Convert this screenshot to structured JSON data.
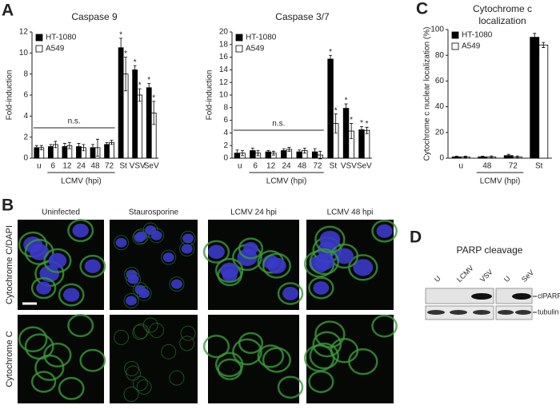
{
  "panel_labels": [
    "A",
    "B",
    "C",
    "D"
  ],
  "chart_data": [
    {
      "type": "bar",
      "title": "Caspase 9",
      "y_label": "Fold-induction",
      "categories": [
        "u",
        "6",
        "12",
        "24",
        "48",
        "72",
        "St",
        "VSV",
        "SeV"
      ],
      "x_group_label": "LCMV (hpi)",
      "annotation": "n.s.",
      "series": [
        {
          "name": "HT-1080",
          "color": "#000000",
          "values": [
            1.0,
            1.1,
            1.1,
            1.1,
            1.0,
            1.3,
            10.5,
            8.4,
            6.7
          ],
          "errors": [
            0.2,
            0.2,
            0.3,
            0.3,
            0.3,
            0.2,
            0.9,
            0.4,
            0.4
          ],
          "value_labels": [
            null,
            null,
            null,
            null,
            null,
            null,
            "*",
            "*",
            "*"
          ]
        },
        {
          "name": "A549",
          "color": "#ffffff",
          "values": [
            1.0,
            1.3,
            1.2,
            1.0,
            1.0,
            1.5,
            8.0,
            6.0,
            4.3
          ],
          "errors": [
            0.2,
            0.3,
            0.3,
            0.3,
            0.8,
            0.2,
            1.6,
            0.6,
            1.1
          ],
          "value_labels": [
            null,
            null,
            null,
            null,
            null,
            null,
            "*",
            "*",
            "*"
          ]
        }
      ],
      "ylim": [
        0,
        12
      ],
      "yticks": [
        0,
        2,
        4,
        6,
        8,
        10,
        12
      ],
      "grid": false,
      "legend": "upper left"
    },
    {
      "type": "bar",
      "title": "Caspase 3/7",
      "y_label": "Fold-induction",
      "categories": [
        "u",
        "6",
        "12",
        "24",
        "48",
        "72",
        "St",
        "VSV",
        "SeV"
      ],
      "x_group_label": "LCMV (hpi)",
      "annotation": "n.s.",
      "series": [
        {
          "name": "HT-1080",
          "color": "#000000",
          "values": [
            0.8,
            1.2,
            1.0,
            1.2,
            1.0,
            1.0,
            15.7,
            7.9,
            4.5
          ],
          "errors": [
            0.5,
            0.4,
            0.2,
            0.3,
            0.3,
            0.5,
            0.6,
            0.7,
            0.5
          ],
          "value_labels": [
            null,
            null,
            null,
            null,
            null,
            null,
            "*",
            "*",
            "*"
          ]
        },
        {
          "name": "A549",
          "color": "#ffffff",
          "values": [
            0.8,
            0.8,
            0.8,
            1.4,
            1.2,
            0.5,
            5.5,
            4.3,
            4.4
          ],
          "errors": [
            0.4,
            0.4,
            0.3,
            0.3,
            0.4,
            0.6,
            1.5,
            1.2,
            0.5
          ],
          "value_labels": [
            null,
            null,
            null,
            null,
            null,
            null,
            "*",
            "*",
            "*"
          ]
        }
      ],
      "ylim": [
        0,
        20
      ],
      "yticks": [
        0,
        2,
        4,
        6,
        8,
        10,
        12,
        14,
        16,
        18,
        20
      ],
      "grid": false,
      "legend": "upper left"
    },
    {
      "type": "bar",
      "title_lines": [
        "Cytochrome c",
        "localization"
      ],
      "y_label": "Cytochrome c nuclear localization (%)",
      "categories": [
        "u",
        "48",
        "72",
        "St"
      ],
      "x_group_label": "LCMV (hpi)",
      "series": [
        {
          "name": "HT-1080",
          "color": "#000000",
          "values": [
            1,
            1,
            2,
            94
          ],
          "errors": [
            0.5,
            0.5,
            1,
            3
          ]
        },
        {
          "name": "A549",
          "color": "#ffffff",
          "values": [
            1,
            1,
            1,
            88
          ],
          "errors": [
            0.5,
            0.8,
            0.8,
            2
          ]
        }
      ],
      "ylim": [
        0,
        100
      ],
      "yticks": [
        0,
        20,
        40,
        60,
        80,
        100
      ],
      "grid": false,
      "legend": "upper left"
    }
  ],
  "microscopy": {
    "columns": [
      "Uninfected",
      "Staurosporine",
      "LCMV 24 hpi",
      "LCMV 48 hpi"
    ],
    "rows": [
      "Cytochrome C/DAPI",
      "Cytochrome C"
    ]
  },
  "blot": {
    "title": "PARP cleavage",
    "lanes": [
      "U",
      "LCMV",
      "VSV",
      "U",
      "SeV"
    ],
    "bands": [
      "clPARP",
      "tubulin"
    ]
  }
}
